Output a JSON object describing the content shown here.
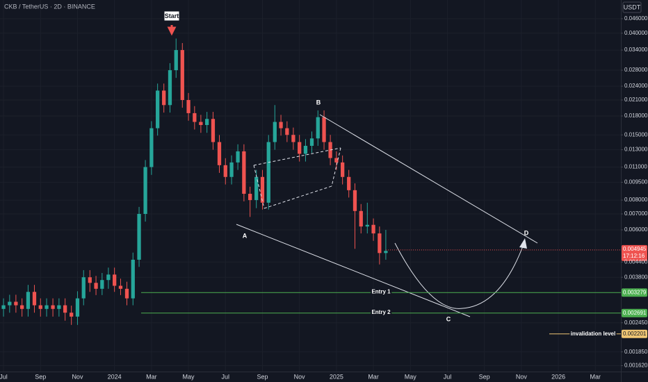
{
  "chart_data": {
    "type": "candlestick",
    "title": "CKB / TetherUS · 2D · BINANCE",
    "y_axis_label": "USDT",
    "log_scale": true,
    "grid": true,
    "up_color": "#26a69a",
    "down_color": "#ef5350",
    "xlim": [
      -0.19,
      33.38
    ],
    "xticks": [
      {
        "value": 0,
        "label": "Jul"
      },
      {
        "value": 2,
        "label": "Sep"
      },
      {
        "value": 4,
        "label": "Nov"
      },
      {
        "value": 6,
        "label": "2024"
      },
      {
        "value": 8,
        "label": "Mar"
      },
      {
        "value": 10,
        "label": "May"
      },
      {
        "value": 12,
        "label": "Jul"
      },
      {
        "value": 14,
        "label": "Sep"
      },
      {
        "value": 16,
        "label": "Nov"
      },
      {
        "value": 18,
        "label": "2025"
      },
      {
        "value": 20,
        "label": "Mar"
      },
      {
        "value": 22,
        "label": "May"
      },
      {
        "value": 24,
        "label": "Jul"
      },
      {
        "value": 26,
        "label": "Sep"
      },
      {
        "value": 28,
        "label": "Nov"
      },
      {
        "value": 30,
        "label": "2026"
      },
      {
        "value": 32,
        "label": "Mar"
      }
    ],
    "ylim": [
      0.00153,
      0.0551
    ],
    "yticks": [
      {
        "value": 0.046,
        "label": "0.046000"
      },
      {
        "value": 0.04,
        "label": "0.040000"
      },
      {
        "value": 0.034,
        "label": "0.034000"
      },
      {
        "value": 0.028,
        "label": "0.028000"
      },
      {
        "value": 0.024,
        "label": "0.024000"
      },
      {
        "value": 0.021,
        "label": "0.021000"
      },
      {
        "value": 0.018,
        "label": "0.018000"
      },
      {
        "value": 0.015,
        "label": "0.015000"
      },
      {
        "value": 0.013,
        "label": "0.013000"
      },
      {
        "value": 0.011,
        "label": "0.011000"
      },
      {
        "value": 0.0095,
        "label": "0.009500"
      },
      {
        "value": 0.008,
        "label": "0.008000"
      },
      {
        "value": 0.007,
        "label": "0.007000"
      },
      {
        "value": 0.006,
        "label": "0.006000"
      },
      {
        "value": 0.0044,
        "label": "0.004400"
      },
      {
        "value": 0.0038,
        "label": "0.003800"
      },
      {
        "value": 0.00245,
        "label": "0.002450"
      },
      {
        "value": 0.00185,
        "label": "0.001850"
      },
      {
        "value": 0.00162,
        "label": "0.001620"
      }
    ],
    "x": [
      0,
      0.33,
      0.67,
      1,
      1.33,
      1.67,
      2,
      2.33,
      2.67,
      3,
      3.33,
      3.67,
      4,
      4.33,
      4.67,
      5,
      5.33,
      5.67,
      6,
      6.33,
      6.67,
      7,
      7.33,
      7.67,
      8,
      8.33,
      8.67,
      9,
      9.33,
      9.67,
      10,
      10.33,
      10.67,
      11,
      11.33,
      11.67,
      12,
      12.33,
      12.67,
      13,
      13.33,
      13.67,
      14,
      14.33,
      14.67,
      15,
      15.33,
      15.67,
      16,
      16.33,
      16.67,
      17,
      17.33,
      17.67,
      18,
      18.33,
      18.67,
      19,
      19.33,
      19.67,
      20,
      20.33,
      20.67
    ],
    "open": [
      0.0028,
      0.0029,
      0.003,
      0.0029,
      0.0028,
      0.0033,
      0.0029,
      0.0028,
      0.0029,
      0.0028,
      0.0029,
      0.0027,
      0.0026,
      0.0031,
      0.0038,
      0.0036,
      0.0034,
      0.0037,
      0.0039,
      0.0035,
      0.0034,
      0.0031,
      0.0045,
      0.007,
      0.011,
      0.016,
      0.023,
      0.02,
      0.028,
      0.034,
      0.021,
      0.0185,
      0.017,
      0.0165,
      0.0175,
      0.014,
      0.0112,
      0.01,
      0.0115,
      0.0128,
      0.0085,
      0.008,
      0.01,
      0.0078,
      0.014,
      0.017,
      0.016,
      0.015,
      0.014,
      0.0125,
      0.0135,
      0.0145,
      0.0178,
      0.014,
      0.012,
      0.0115,
      0.01,
      0.0088,
      0.0072,
      0.0062,
      0.0063,
      0.0058,
      0.0048
    ],
    "high": [
      0.0031,
      0.00321,
      0.00321,
      0.0031,
      0.00353,
      0.00353,
      0.0031,
      0.0031,
      0.0031,
      0.0031,
      0.0031,
      0.00289,
      0.00332,
      0.00407,
      0.00407,
      0.00385,
      0.00396,
      0.00417,
      0.00417,
      0.00375,
      0.00364,
      0.00482,
      0.00749,
      0.01177,
      0.01712,
      0.02461,
      0.02461,
      0.02996,
      0.038,
      0.03638,
      0.02247,
      0.0198,
      0.0182,
      0.01873,
      0.01873,
      0.01498,
      0.01198,
      0.01231,
      0.0137,
      0.0137,
      0.0091,
      0.0107,
      0.0107,
      0.01498,
      0.02,
      0.0182,
      0.0171,
      0.0161,
      0.015,
      0.0144,
      0.0155,
      0.019,
      0.019,
      0.015,
      0.0128,
      0.0123,
      0.0107,
      0.0094,
      0.0077,
      0.0078,
      0.0067,
      0.0062,
      0.006
    ],
    "low": [
      0.0026,
      0.0027,
      0.0027,
      0.0026,
      0.0026,
      0.0027,
      0.0026,
      0.0026,
      0.0026,
      0.0026,
      0.0025,
      0.0024,
      0.0024,
      0.0029,
      0.0033,
      0.0032,
      0.0032,
      0.0034,
      0.0033,
      0.0032,
      0.0029,
      0.0029,
      0.0042,
      0.0065,
      0.0102,
      0.0149,
      0.0186,
      0.0186,
      0.026,
      0.0195,
      0.0172,
      0.0158,
      0.0153,
      0.0153,
      0.013,
      0.0104,
      0.0093,
      0.0093,
      0.0107,
      0.0079,
      0.0068,
      0.0074,
      0.0073,
      0.0073,
      0.013,
      0.0149,
      0.014,
      0.013,
      0.0116,
      0.0116,
      0.0126,
      0.0135,
      0.013,
      0.0112,
      0.0107,
      0.0093,
      0.0082,
      0.005,
      0.0058,
      0.0058,
      0.0054,
      0.0043,
      0.0045
    ],
    "close": [
      0.0029,
      0.003,
      0.0029,
      0.0028,
      0.0033,
      0.0029,
      0.0028,
      0.0029,
      0.0028,
      0.0029,
      0.0027,
      0.0026,
      0.0031,
      0.0038,
      0.0036,
      0.0034,
      0.0037,
      0.0039,
      0.0035,
      0.0034,
      0.0031,
      0.0045,
      0.007,
      0.011,
      0.016,
      0.023,
      0.02,
      0.028,
      0.034,
      0.021,
      0.0185,
      0.017,
      0.0165,
      0.0175,
      0.014,
      0.0112,
      0.01,
      0.0115,
      0.0128,
      0.0085,
      0.008,
      0.01,
      0.0078,
      0.014,
      0.017,
      0.016,
      0.015,
      0.014,
      0.0125,
      0.0135,
      0.0145,
      0.0178,
      0.014,
      0.012,
      0.0115,
      0.01,
      0.0088,
      0.0072,
      0.0062,
      0.0063,
      0.0058,
      0.0048,
      0.0049
    ],
    "last_price": 0.004945,
    "countdown": "17:12:16",
    "levels": [
      {
        "name": "Entry 1",
        "value": 0.003279,
        "color": "#4caf50"
      },
      {
        "name": "Entry 2",
        "value": 0.002691,
        "color": "#4caf50"
      },
      {
        "name": "invalidation level",
        "value": 0.002201,
        "color": "#f0c674"
      }
    ],
    "start_label": "Start",
    "wave_labels": [
      "A",
      "B",
      "C",
      "D"
    ]
  }
}
